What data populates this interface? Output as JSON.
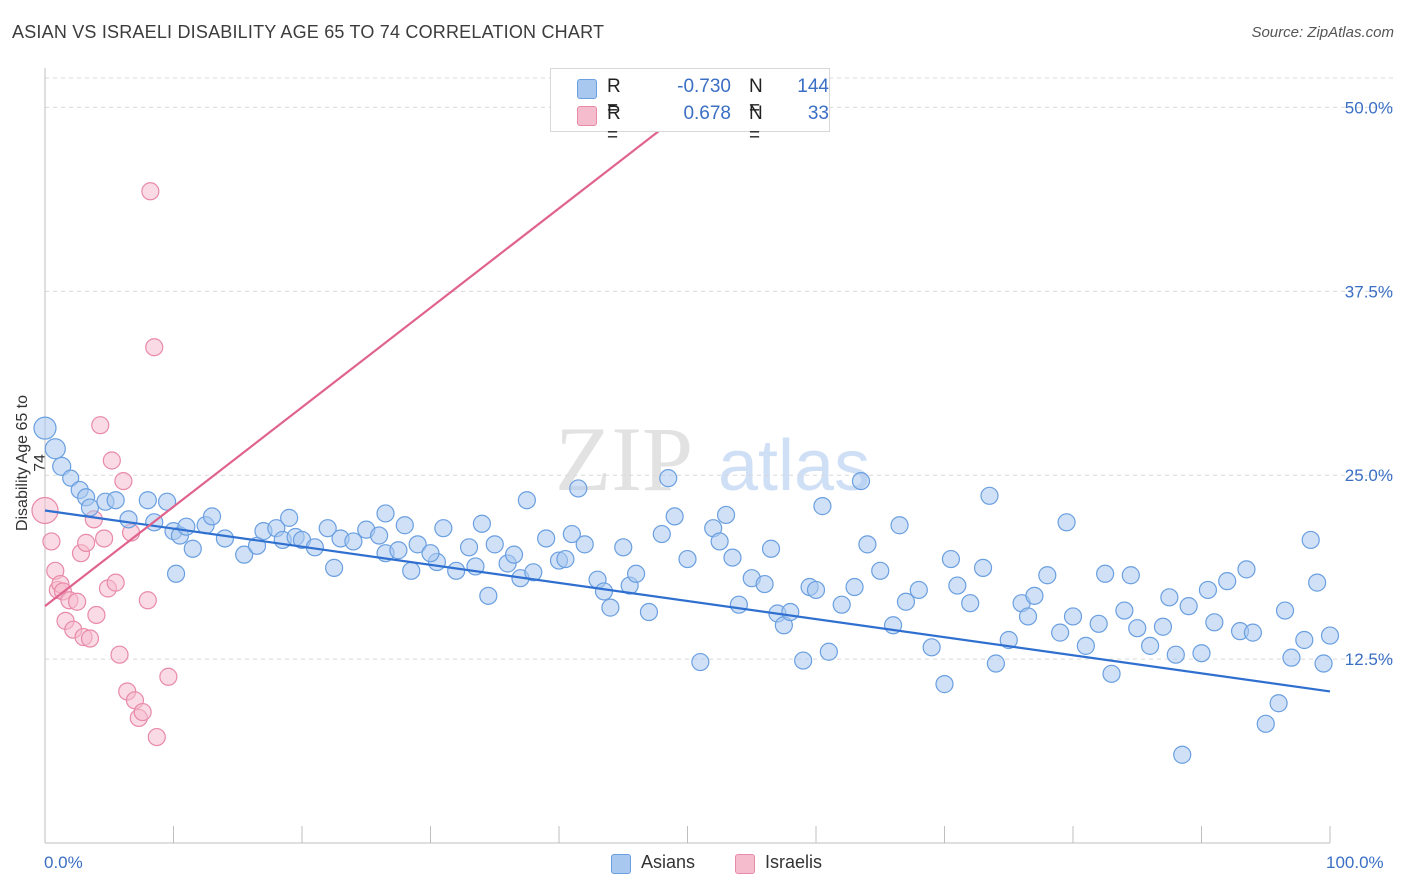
{
  "header": {
    "title": "ASIAN VS ISRAELI DISABILITY AGE 65 TO 74 CORRELATION CHART",
    "source": "Source: ZipAtlas.com"
  },
  "watermark": {
    "zip": "ZIP",
    "atlas": "atlas"
  },
  "legend": {
    "rows": [
      {
        "r_label": "R =",
        "r_value": "-0.730",
        "n_label": "N =",
        "n_value": "144"
      },
      {
        "r_label": "R =",
        "r_value": "0.678",
        "n_label": "N =",
        "n_value": "33"
      }
    ]
  },
  "bottom_legend": {
    "asians": "Asians",
    "israelis": "Israelis"
  },
  "colors": {
    "asians_fill": "#a9c8f0",
    "asians_stroke": "#6a9fe0",
    "asians_line": "#2f6fd0",
    "israelis_fill": "#f5bccd",
    "israelis_stroke": "#e88aa8",
    "israelis_line": "#e0638e",
    "grid": "#d9d9d9",
    "tick_text": "#3a6fc4"
  },
  "chart_data": {
    "type": "scatter",
    "title": "ASIAN VS ISRAELI DISABILITY AGE 65 TO 74 CORRELATION CHART",
    "xlabel": "",
    "ylabel": "Disability Age 65 to 74",
    "xlim": [
      0,
      100
    ],
    "ylim": [
      0,
      50
    ],
    "x_tick_labels": [
      "0.0%",
      "100.0%"
    ],
    "y_ticks": [
      12.5,
      25.0,
      37.5,
      50.0
    ],
    "y_tick_labels": [
      "12.5%",
      "25.0%",
      "37.5%",
      "50.0%"
    ],
    "grid": true,
    "legend_position": "top-center",
    "series": [
      {
        "name": "Asians",
        "R": -0.73,
        "N": 144,
        "trend": {
          "x": [
            0,
            100
          ],
          "y": [
            22.6,
            10.3
          ]
        },
        "points": [
          [
            0.0,
            28.2
          ],
          [
            0.8,
            26.8
          ],
          [
            1.3,
            25.6
          ],
          [
            2.0,
            24.8
          ],
          [
            2.7,
            24.0
          ],
          [
            3.2,
            23.5
          ],
          [
            3.5,
            22.8
          ],
          [
            4.7,
            23.2
          ],
          [
            5.5,
            23.3
          ],
          [
            6.5,
            22.0
          ],
          [
            8.0,
            23.3
          ],
          [
            8.5,
            21.8
          ],
          [
            9.5,
            23.2
          ],
          [
            10.0,
            21.2
          ],
          [
            10.5,
            20.9
          ],
          [
            11.0,
            21.5
          ],
          [
            11.5,
            20.0
          ],
          [
            12.5,
            21.6
          ],
          [
            13.0,
            22.2
          ],
          [
            14.0,
            20.7
          ],
          [
            15.5,
            19.6
          ],
          [
            16.5,
            20.2
          ],
          [
            17.0,
            21.2
          ],
          [
            18.0,
            21.4
          ],
          [
            18.5,
            20.6
          ],
          [
            19.0,
            22.1
          ],
          [
            19.5,
            20.8
          ],
          [
            20.0,
            20.6
          ],
          [
            21.0,
            20.1
          ],
          [
            22.0,
            21.4
          ],
          [
            23.0,
            20.7
          ],
          [
            24.0,
            20.5
          ],
          [
            25.0,
            21.3
          ],
          [
            26.0,
            20.9
          ],
          [
            26.5,
            19.7
          ],
          [
            27.5,
            19.9
          ],
          [
            28.0,
            21.6
          ],
          [
            28.5,
            18.5
          ],
          [
            29.0,
            20.3
          ],
          [
            30.5,
            19.1
          ],
          [
            31.0,
            21.4
          ],
          [
            32.0,
            18.5
          ],
          [
            33.0,
            20.1
          ],
          [
            33.5,
            18.8
          ],
          [
            34.0,
            21.7
          ],
          [
            35.0,
            20.3
          ],
          [
            36.0,
            19.0
          ],
          [
            36.5,
            19.6
          ],
          [
            37.0,
            18.0
          ],
          [
            38.0,
            18.4
          ],
          [
            39.0,
            20.7
          ],
          [
            40.0,
            19.2
          ],
          [
            40.5,
            19.3
          ],
          [
            41.0,
            21.0
          ],
          [
            42.0,
            20.3
          ],
          [
            43.0,
            17.9
          ],
          [
            43.5,
            17.1
          ],
          [
            44.0,
            16.0
          ],
          [
            45.5,
            17.5
          ],
          [
            46.0,
            18.3
          ],
          [
            47.0,
            15.7
          ],
          [
            48.0,
            21.0
          ],
          [
            49.0,
            22.2
          ],
          [
            50.0,
            19.3
          ],
          [
            51.0,
            12.3
          ],
          [
            52.0,
            21.4
          ],
          [
            52.5,
            20.5
          ],
          [
            53.5,
            19.4
          ],
          [
            54.0,
            16.2
          ],
          [
            55.0,
            18.0
          ],
          [
            56.0,
            17.6
          ],
          [
            57.0,
            15.6
          ],
          [
            57.5,
            14.8
          ],
          [
            58.0,
            15.7
          ],
          [
            59.0,
            12.4
          ],
          [
            59.5,
            17.4
          ],
          [
            60.0,
            17.2
          ],
          [
            61.0,
            13.0
          ],
          [
            62.0,
            16.2
          ],
          [
            63.0,
            17.4
          ],
          [
            64.0,
            20.3
          ],
          [
            65.0,
            18.5
          ],
          [
            66.0,
            14.8
          ],
          [
            67.0,
            16.4
          ],
          [
            68.0,
            17.2
          ],
          [
            69.0,
            13.3
          ],
          [
            70.0,
            10.8
          ],
          [
            71.0,
            17.5
          ],
          [
            72.0,
            16.3
          ],
          [
            73.0,
            18.7
          ],
          [
            74.0,
            12.2
          ],
          [
            75.0,
            13.8
          ],
          [
            76.0,
            16.3
          ],
          [
            77.0,
            16.8
          ],
          [
            78.0,
            18.2
          ],
          [
            79.0,
            14.3
          ],
          [
            80.0,
            15.4
          ],
          [
            81.0,
            13.4
          ],
          [
            82.0,
            14.9
          ],
          [
            82.5,
            18.3
          ],
          [
            83.0,
            11.5
          ],
          [
            84.0,
            15.8
          ],
          [
            85.0,
            14.6
          ],
          [
            86.0,
            13.4
          ],
          [
            87.0,
            14.7
          ],
          [
            88.0,
            12.8
          ],
          [
            88.5,
            6.0
          ],
          [
            89.0,
            16.1
          ],
          [
            90.0,
            12.9
          ],
          [
            91.0,
            15.0
          ],
          [
            92.0,
            17.8
          ],
          [
            93.0,
            14.4
          ],
          [
            94.0,
            14.3
          ],
          [
            95.0,
            8.1
          ],
          [
            96.0,
            9.5
          ],
          [
            97.0,
            12.6
          ],
          [
            98.0,
            13.8
          ],
          [
            99.0,
            17.7
          ],
          [
            99.5,
            12.2
          ],
          [
            100.0,
            14.1
          ],
          [
            22.5,
            18.7
          ],
          [
            26.5,
            22.4
          ],
          [
            30.0,
            19.7
          ],
          [
            34.5,
            16.8
          ],
          [
            37.5,
            23.3
          ],
          [
            41.5,
            24.1
          ],
          [
            45.0,
            20.1
          ],
          [
            48.5,
            24.8
          ],
          [
            53.0,
            22.3
          ],
          [
            56.5,
            20.0
          ],
          [
            60.5,
            22.9
          ],
          [
            63.5,
            24.6
          ],
          [
            66.5,
            21.6
          ],
          [
            70.5,
            19.3
          ],
          [
            73.5,
            23.6
          ],
          [
            76.5,
            15.4
          ],
          [
            79.5,
            21.8
          ],
          [
            84.5,
            18.2
          ],
          [
            87.5,
            16.7
          ],
          [
            90.5,
            17.2
          ],
          [
            93.5,
            18.6
          ],
          [
            96.5,
            15.8
          ],
          [
            98.5,
            20.6
          ],
          [
            10.2,
            18.3
          ]
        ]
      },
      {
        "name": "Israelis",
        "R": 0.678,
        "N": 33,
        "trend": {
          "x": [
            0,
            50
          ],
          "y": [
            16.1,
            49.9
          ]
        },
        "points": [
          [
            0.0,
            22.6
          ],
          [
            0.5,
            20.5
          ],
          [
            0.8,
            18.5
          ],
          [
            1.0,
            17.2
          ],
          [
            1.2,
            17.6
          ],
          [
            1.4,
            17.1
          ],
          [
            1.6,
            15.1
          ],
          [
            1.9,
            16.5
          ],
          [
            2.2,
            14.5
          ],
          [
            2.5,
            16.4
          ],
          [
            2.8,
            19.7
          ],
          [
            3.0,
            14.0
          ],
          [
            3.2,
            20.4
          ],
          [
            3.5,
            13.9
          ],
          [
            3.8,
            22.0
          ],
          [
            4.0,
            15.5
          ],
          [
            4.3,
            28.4
          ],
          [
            4.6,
            20.7
          ],
          [
            4.9,
            17.3
          ],
          [
            5.2,
            26.0
          ],
          [
            5.5,
            17.7
          ],
          [
            5.8,
            12.8
          ],
          [
            6.1,
            24.6
          ],
          [
            6.4,
            10.3
          ],
          [
            6.7,
            21.1
          ],
          [
            7.0,
            9.7
          ],
          [
            7.3,
            8.5
          ],
          [
            7.6,
            8.9
          ],
          [
            8.0,
            16.5
          ],
          [
            8.2,
            44.3
          ],
          [
            8.5,
            33.7
          ],
          [
            8.7,
            7.2
          ],
          [
            9.6,
            11.3
          ]
        ]
      }
    ]
  }
}
